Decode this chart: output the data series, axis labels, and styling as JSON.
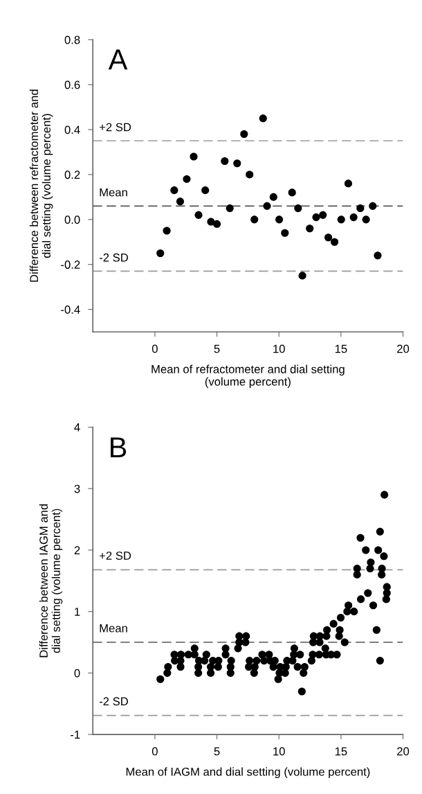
{
  "chart_data": [
    {
      "type": "scatter",
      "xlabel": "Mean of refractometer and dial setting\n(volume percent)",
      "ylabel": "Difference between refractometer and\ndial setting (volume percent)",
      "annotations": [
        "A"
      ],
      "xlim": [
        -5,
        20
      ],
      "ylim": [
        -0.5,
        0.8
      ],
      "xticks": [
        0,
        5,
        10,
        15,
        20
      ],
      "yticks": [
        -0.4,
        -0.2,
        {
          "value": 0,
          "label": "0.0"
        },
        0.2,
        0.4,
        0.6,
        0.8
      ],
      "grid": false,
      "legend": false,
      "marker": "circle",
      "series": [
        {
          "color": "#000000",
          "x": [
            0.44,
            0.96,
            1.56,
            2.04,
            2.57,
            3.13,
            3.52,
            4.06,
            4.52,
            5.0,
            5.63,
            6.04,
            6.63,
            7.19,
            7.63,
            8.02,
            8.72,
            9.04,
            9.56,
            10.02,
            10.48,
            11.06,
            11.54,
            11.89,
            12.48,
            13.0,
            13.54,
            13.98,
            14.48,
            15.02,
            15.59,
            16.02,
            16.56,
            17.02,
            17.56,
            17.96
          ],
          "values": [
            -0.15,
            -0.05,
            0.13,
            0.08,
            0.18,
            0.28,
            0.02,
            0.13,
            -0.01,
            -0.02,
            0.26,
            0.05,
            0.25,
            0.38,
            0.2,
            0.0,
            0.45,
            0.06,
            0.1,
            0.0,
            -0.06,
            0.12,
            0.05,
            -0.25,
            -0.04,
            0.01,
            0.02,
            -0.08,
            -0.1,
            0.0,
            0.16,
            0.01,
            0.05,
            0.0,
            0.06,
            -0.16
          ]
        }
      ],
      "ref_lines": [
        {
          "axis": "y",
          "value": 0.35,
          "label": "+2 SD",
          "color": "#999999",
          "line_style": "dashed"
        },
        {
          "axis": "y",
          "value": 0.06,
          "label": "Mean",
          "color": "#555555",
          "line_style": "dashed"
        },
        {
          "axis": "y",
          "value": -0.23,
          "label": "-2 SD",
          "color": "#999999",
          "line_style": "dashed"
        }
      ]
    },
    {
      "type": "scatter",
      "xlabel": "Mean of IAGM and dial setting (volume percent)",
      "ylabel": "Difference between IAGM and\ndial setting (volume percent)",
      "annotations": [
        "B"
      ],
      "xlim": [
        -5,
        20
      ],
      "ylim": [
        -1,
        4
      ],
      "xticks": [
        0,
        5,
        10,
        15,
        20
      ],
      "yticks": [
        -1,
        0,
        1,
        2,
        3,
        4
      ],
      "grid": false,
      "legend": false,
      "marker": "circle",
      "series": [
        {
          "color": "#000000",
          "x": [
            0.44,
            1.0,
            1.06,
            1.57,
            1.6,
            2.07,
            2.1,
            2.07,
            2.7,
            3.2,
            3.2,
            3.5,
            3.5,
            3.55,
            4.15,
            4.0,
            4.5,
            4.5,
            4.67,
            5.1,
            5.13,
            5.7,
            5.7,
            6.1,
            6.1,
            6.15,
            6.7,
            6.8,
            6.8,
            7.35,
            7.3,
            7.57,
            7.63,
            8.0,
            8.05,
            8.2,
            8.65,
            8.8,
            9.2,
            9.3,
            9.55,
            9.67,
            9.94,
            10.04,
            10.1,
            10.5,
            10.56,
            10.65,
            11.1,
            11.24,
            11.2,
            11.5,
            11.7,
            11.85,
            11.98,
            12.07,
            12.63,
            12.72,
            12.76,
            12.8,
            13.24,
            13.28,
            13.3,
            13.74,
            13.8,
            13.83,
            13.87,
            14.2,
            14.4,
            14.67,
            14.85,
            14.9,
            14.98,
            15.3,
            15.6,
            15.5,
            16.05,
            16.3,
            16.3,
            16.57,
            16.6,
            17.0,
            17.17,
            17.4,
            17.35,
            17.6,
            17.87,
            18.0,
            18.15,
            18.15,
            18.3,
            18.28,
            18.46,
            18.5,
            18.7,
            18.7,
            18.65
          ],
          "values": [
            -0.1,
            0.0,
            0.1,
            0.3,
            0.2,
            0.1,
            0.3,
            0.2,
            0.3,
            0.4,
            0.3,
            0.0,
            0.1,
            0.2,
            0.3,
            0.2,
            0.0,
            0.1,
            0.2,
            0.1,
            0.2,
            0.4,
            0.3,
            0.0,
            0.1,
            0.2,
            0.4,
            0.6,
            0.5,
            0.6,
            0.5,
            0.1,
            0.2,
            0.0,
            0.1,
            0.2,
            0.3,
            0.2,
            0.3,
            0.2,
            0.1,
            0.2,
            -0.1,
            0.0,
            0.1,
            0.0,
            0.1,
            0.2,
            0.2,
            0.4,
            0.3,
            0.1,
            0.3,
            -0.3,
            0.0,
            0.1,
            0.2,
            0.3,
            0.5,
            0.6,
            0.3,
            0.5,
            0.6,
            0.4,
            0.3,
            0.6,
            0.7,
            0.3,
            0.8,
            0.3,
            0.6,
            0.7,
            0.9,
            0.5,
            1.1,
            1.0,
            1.0,
            1.7,
            1.6,
            2.2,
            1.2,
            2.0,
            1.3,
            1.8,
            1.7,
            1.1,
            0.7,
            2.0,
            2.3,
            0.2,
            1.7,
            1.6,
            1.9,
            2.9,
            1.4,
            1.3,
            1.2
          ]
        }
      ],
      "ref_lines": [
        {
          "axis": "y",
          "value": 1.68,
          "label": "+2 SD",
          "color": "#999999",
          "line_style": "dashed"
        },
        {
          "axis": "y",
          "value": 0.5,
          "label": "Mean",
          "color": "#555555",
          "line_style": "dashed"
        },
        {
          "axis": "y",
          "value": -0.69,
          "label": "-2 SD",
          "color": "#999999",
          "line_style": "dashed"
        }
      ]
    }
  ]
}
